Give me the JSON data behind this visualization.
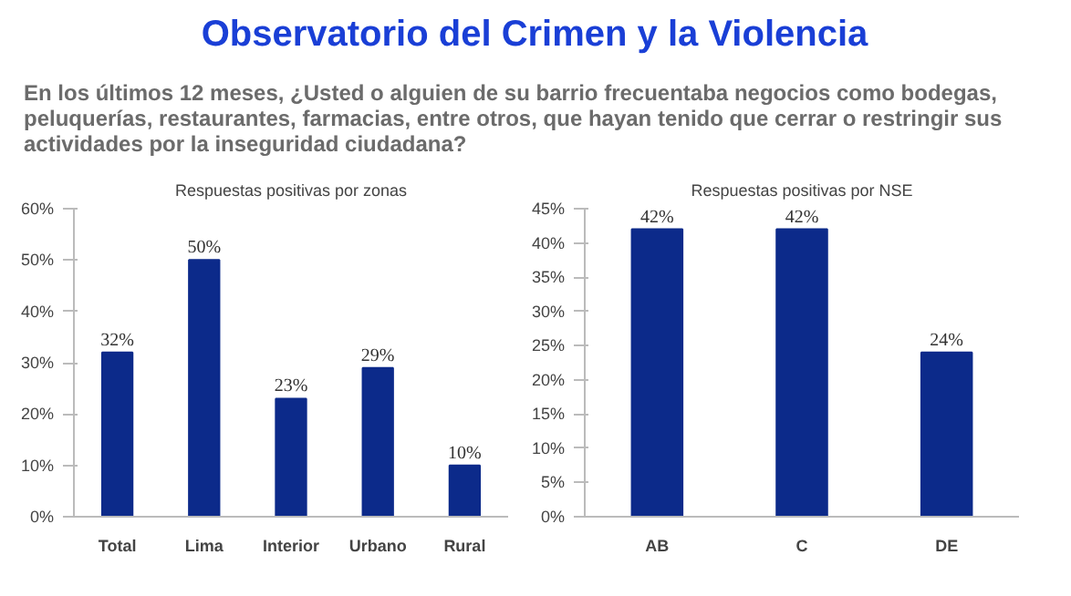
{
  "chart_data": [
    {
      "type": "bar",
      "title": "Respuestas positivas por zonas",
      "annotations": [
        "Observatorio del Crimen y la Violencia",
        "En los últimos 12 meses, ¿Usted o alguien de su barrio frecuentaba negocios como bodegas, peluquerías, restaurantes, farmacias, entre otros, que hayan tenido que cerrar o restringir sus actividades por la inseguridad ciudadana?"
      ],
      "categories": [
        "Total",
        "Lima",
        "Interior",
        "Urbano",
        "Rural"
      ],
      "values": [
        32,
        50,
        23,
        29,
        10
      ],
      "value_labels": [
        "32%",
        "50%",
        "23%",
        "29%",
        "10%"
      ],
      "color": "#0c2a8a",
      "ylim": [
        0,
        60
      ],
      "yticks": [
        {
          "value": 0,
          "label": "0%"
        },
        {
          "value": 10,
          "label": "10%"
        },
        {
          "value": 20,
          "label": "20%"
        },
        {
          "value": 30,
          "label": "30%"
        },
        {
          "value": 40,
          "label": "40%"
        },
        {
          "value": 50,
          "label": "50%"
        },
        {
          "value": 60,
          "label": "60%"
        }
      ],
      "grid": false
    },
    {
      "type": "bar",
      "title": "Respuestas positivas por NSE",
      "categories": [
        "AB",
        "C",
        "DE"
      ],
      "values": [
        42,
        42,
        24
      ],
      "value_labels": [
        "42%",
        "42%",
        "24%"
      ],
      "color": "#0c2a8a",
      "ylim": [
        0,
        45
      ],
      "yticks": [
        {
          "value": 0,
          "label": "0%"
        },
        {
          "value": 5,
          "label": "5%"
        },
        {
          "value": 10,
          "label": "10%"
        },
        {
          "value": 15,
          "label": "15%"
        },
        {
          "value": 20,
          "label": "20%"
        },
        {
          "value": 25,
          "label": "25%"
        },
        {
          "value": 30,
          "label": "30%"
        },
        {
          "value": 35,
          "label": "35%"
        },
        {
          "value": 40,
          "label": "40%"
        },
        {
          "value": 45,
          "label": "45%"
        }
      ],
      "grid": false
    }
  ]
}
